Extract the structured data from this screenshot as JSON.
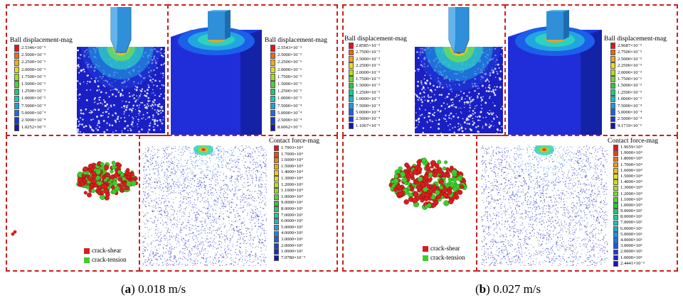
{
  "panel_a": {
    "caption_letter": "a",
    "caption_rest": " 0.018 m/s",
    "disp_left": {
      "title": "Ball displacement-mag",
      "values": [
        "2.5346×10⁻³",
        "2.5000×10⁻³",
        "2.2500×10⁻³",
        "2.0000×10⁻³",
        "1.7500×10⁻³",
        "1.5000×10⁻³",
        "1.2500×10⁻³",
        "1.0000×10⁻³",
        "7.5000×10⁻⁴",
        "5.0000×10⁻⁴",
        "2.5000×10⁻⁴",
        "1.0252×10⁻⁵"
      ]
    },
    "disp_right": {
      "title": "Ball displacement-mag",
      "values": [
        "2.5543×10⁻³",
        "2.5000×10⁻³",
        "2.2500×10⁻³",
        "2.0000×10⁻³",
        "1.7500×10⁻³",
        "1.5000×10⁻³",
        "1.2500×10⁻³",
        "1.0000×10⁻³",
        "7.5000×10⁻⁴",
        "5.0000×10⁻⁴",
        "2.5000×10⁻⁴",
        "8.6062×10⁻⁶"
      ]
    },
    "contact": {
      "title": "Contact force-mag",
      "values": [
        "1.7993×10⁴",
        "1.7000×10⁴",
        "1.6000×10⁴",
        "1.5000×10⁴",
        "1.4000×10⁴",
        "1.3000×10⁴",
        "1.2000×10⁴",
        "1.1000×10⁴",
        "1.0000×10⁴",
        "9.0000×10³",
        "8.0000×10³",
        "7.0000×10³",
        "6.0000×10³",
        "5.0000×10³",
        "4.0000×10³",
        "3.0000×10³",
        "2.0000×10³",
        "1.0000×10³",
        "7.0780×10⁻³"
      ]
    },
    "crack_legend": [
      "crack-shear",
      "crack-tension"
    ]
  },
  "panel_b": {
    "caption_letter": "b",
    "caption_rest": " 0.027 m/s",
    "disp_left": {
      "title": "Ball displacement-mag",
      "values": [
        "2.8585×10⁻³",
        "2.7500×10⁻³",
        "2.5000×10⁻³",
        "2.2500×10⁻³",
        "2.0000×10⁻³",
        "1.7500×10⁻³",
        "1.5000×10⁻³",
        "1.2500×10⁻³",
        "1.0000×10⁻³",
        "7.5000×10⁻⁴",
        "5.0000×10⁻⁴",
        "2.5000×10⁻⁴",
        "1.1067×10⁻⁵"
      ]
    },
    "disp_right": {
      "title": "Ball displacement-mag",
      "values": [
        "2.9687×10⁻³",
        "2.7500×10⁻³",
        "2.5000×10⁻³",
        "2.2500×10⁻³",
        "2.0000×10⁻³",
        "1.7500×10⁻³",
        "1.5000×10⁻³",
        "1.2500×10⁻³",
        "1.0000×10⁻³",
        "7.5000×10⁻⁴",
        "5.0000×10⁻⁴",
        "2.5000×10⁻⁴",
        "9.1719×10⁻⁶"
      ]
    },
    "contact": {
      "title": "Contact force-mag",
      "values": [
        "1.9659×10⁴",
        "1.9000×10⁴",
        "1.8000×10⁴",
        "1.7000×10⁴",
        "1.6000×10⁴",
        "1.5000×10⁴",
        "1.4000×10⁴",
        "1.3000×10⁴",
        "1.2000×10⁴",
        "1.1000×10⁴",
        "1.0000×10⁴",
        "9.0000×10³",
        "8.0000×10³",
        "7.0000×10³",
        "6.0000×10³",
        "5.0000×10³",
        "4.0000×10³",
        "3.0000×10³",
        "2.0000×10³",
        "1.0000×10³",
        "2.4441×10⁻³"
      ]
    },
    "crack_legend": [
      "crack-shear",
      "crack-tension"
    ]
  },
  "colors": {
    "frame": "#c81e1e",
    "shear": "#d81e1e",
    "tension": "#3ccf2a",
    "indenter": "#2f8fd9",
    "particle_blue": "#1a1fc4"
  }
}
